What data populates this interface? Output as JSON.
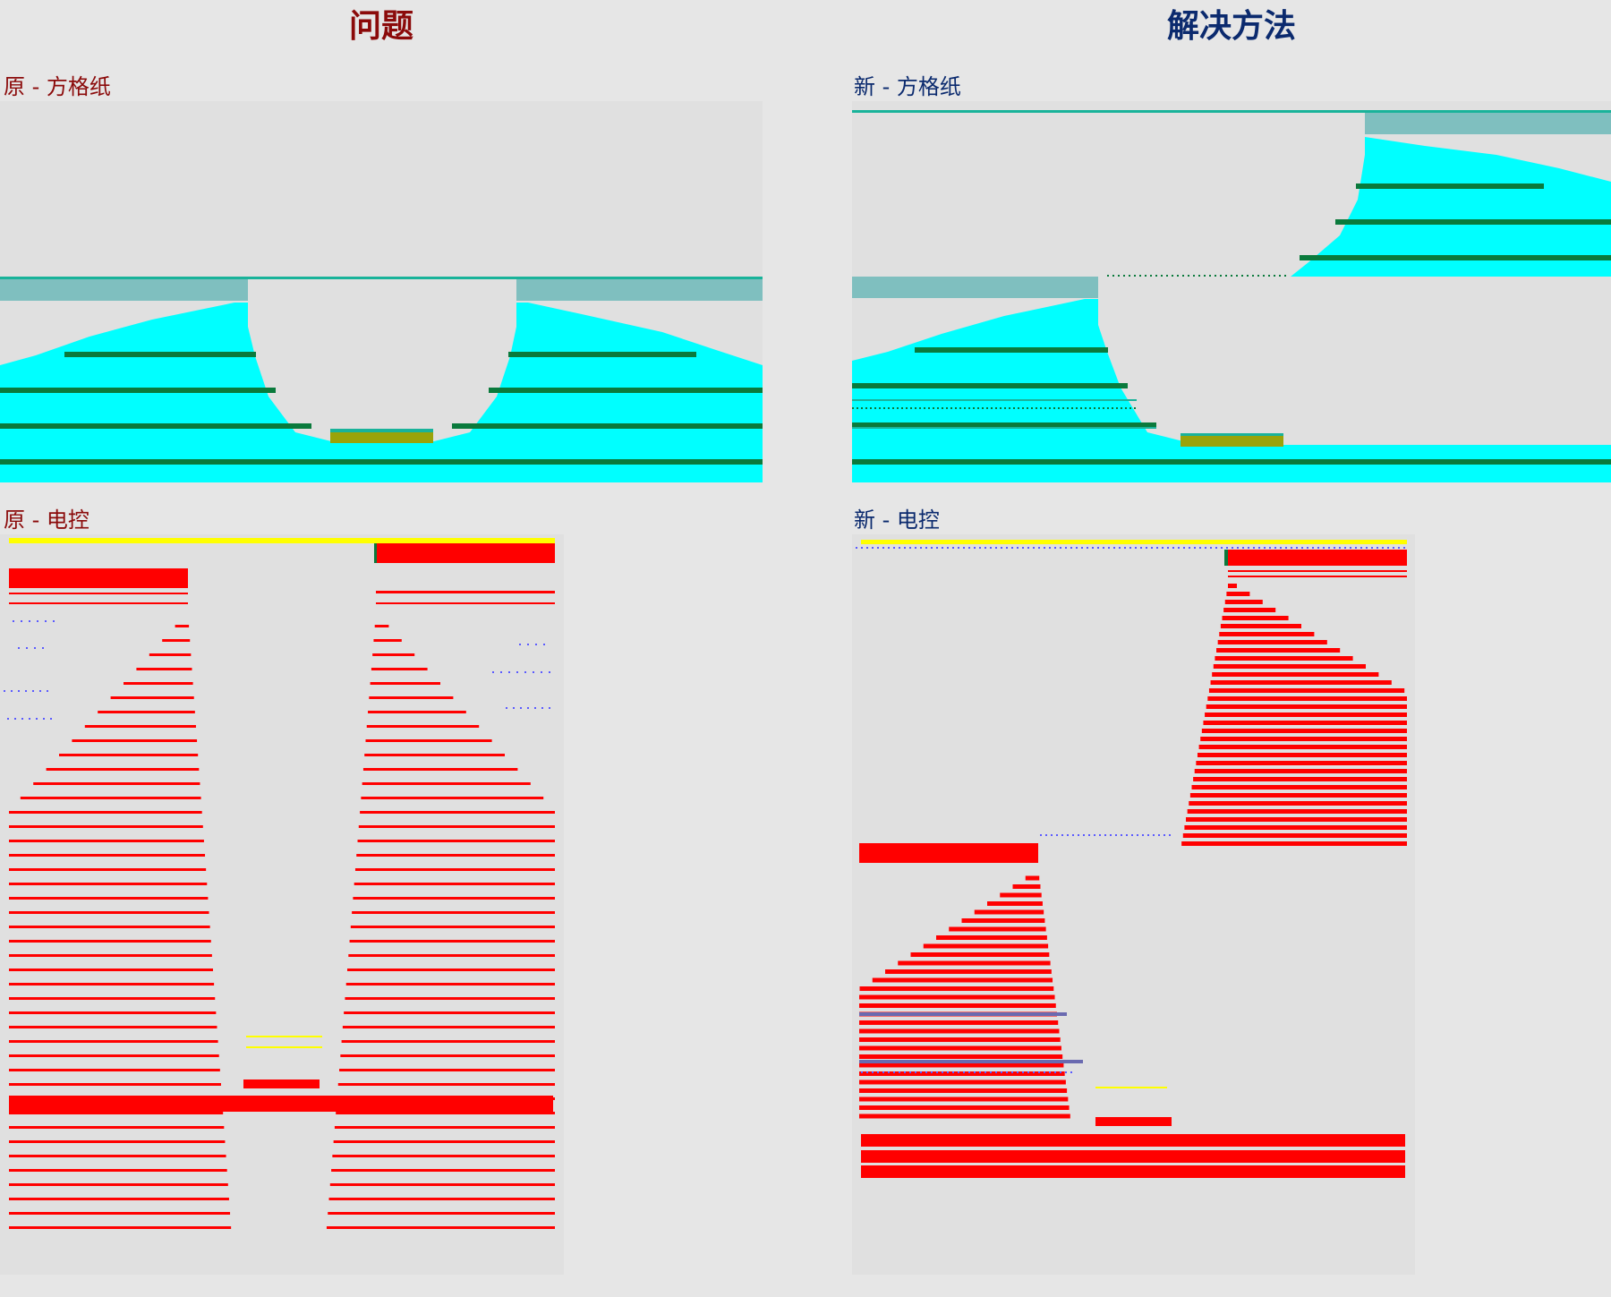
{
  "columns": {
    "problem": {
      "title": "问题",
      "color": "#8b0a0a"
    },
    "solution": {
      "title": "解决方法",
      "color": "#0b2a6e"
    }
  },
  "panels": {
    "orig_grid": {
      "label": "原 - 方格纸"
    },
    "new_grid": {
      "label": "新 - 方格纸"
    },
    "orig_ctrl": {
      "label": "原 - 电控"
    },
    "new_ctrl": {
      "label": "新 - 电控"
    }
  },
  "colors": {
    "background": "#e6e6e6",
    "panel_bg": "#e0e0e0",
    "cyan_fill": "#00ffff",
    "dark_green_line": "#0a7a3c",
    "teal_line": "#19b39a",
    "gray_teal_band": "#7fbfbf",
    "olive_pad": "#9aa30a",
    "red_bar": "#ff0000",
    "yellow_line": "#ffff00",
    "blue_dot": "#5a5aff"
  }
}
